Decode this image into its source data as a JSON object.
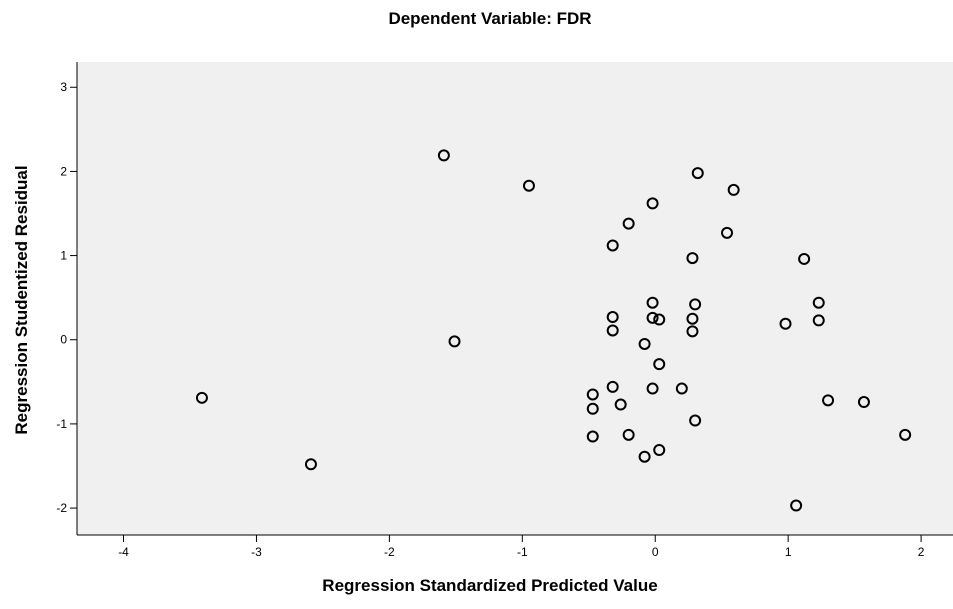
{
  "chart_data": {
    "type": "scatter",
    "title": "Dependent Variable: FDR",
    "xlabel": "Regression Standardized Predicted Value",
    "ylabel": "Regression Studentized Residual",
    "xlim": [
      -4.35,
      2.24
    ],
    "ylim": [
      -2.32,
      3.3
    ],
    "xticks": [
      -4,
      -3,
      -2,
      -1,
      0,
      1,
      2
    ],
    "yticks": [
      -2,
      -1,
      0,
      1,
      2,
      3
    ],
    "color": "#000000",
    "background": "#f0f0f0",
    "x": [
      -1.59,
      -0.95,
      0.32,
      0.59,
      -0.02,
      -0.2,
      -0.32,
      0.54,
      0.28,
      1.12,
      -0.02,
      0.3,
      1.23,
      -0.32,
      -0.02,
      0.03,
      0.28,
      1.23,
      0.98,
      -0.32,
      0.28,
      -1.51,
      -0.08,
      0.03,
      -0.32,
      -0.02,
      0.2,
      -3.41,
      -0.47,
      -0.26,
      -0.47,
      1.3,
      1.57,
      0.3,
      1.88,
      -0.47,
      -0.2,
      0.03,
      -0.08,
      -2.59,
      1.06
    ],
    "values": [
      2.19,
      1.83,
      1.98,
      1.78,
      1.62,
      1.38,
      1.12,
      1.27,
      0.97,
      0.96,
      0.44,
      0.42,
      0.44,
      0.27,
      0.26,
      0.24,
      0.25,
      0.23,
      0.19,
      0.11,
      0.1,
      -0.02,
      -0.05,
      -0.29,
      -0.56,
      -0.58,
      -0.58,
      -0.69,
      -0.65,
      -0.77,
      -0.82,
      -0.72,
      -0.74,
      -0.96,
      -1.13,
      -1.15,
      -1.13,
      -1.31,
      -1.39,
      -1.48,
      -1.97
    ]
  }
}
